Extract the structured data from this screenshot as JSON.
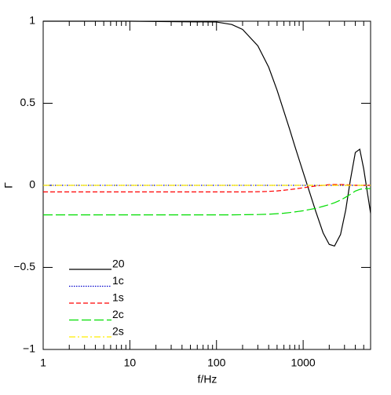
{
  "chart_data": {
    "type": "line",
    "x_label": "f/Hz",
    "y_label": "Γ",
    "x": [
      1,
      10,
      100,
      150,
      200,
      300,
      400,
      500,
      600,
      700,
      800,
      1000,
      1200,
      1400,
      1700,
      2000,
      2300,
      2700,
      3100,
      3500,
      4000,
      4500,
      5000,
      6000
    ],
    "series": [
      {
        "name": "20",
        "color": "#000000",
        "dash": "solid",
        "values": [
          1,
          1,
          0.995,
          0.98,
          0.95,
          0.85,
          0.72,
          0.58,
          0.45,
          0.34,
          0.24,
          0.08,
          -0.05,
          -0.16,
          -0.29,
          -0.36,
          -0.37,
          -0.3,
          -0.15,
          0.03,
          0.2,
          0.22,
          0.1,
          -0.17
        ]
      },
      {
        "name": "1c",
        "color": "#0000cc",
        "dash": "dotted",
        "values": [
          0,
          0,
          0,
          0,
          0,
          0,
          0,
          0,
          0,
          0,
          0,
          0,
          0,
          0,
          0,
          0,
          0,
          0,
          0,
          0,
          0,
          0,
          0,
          0
        ]
      },
      {
        "name": "1s",
        "color": "#ff0000",
        "dash": "dashed",
        "values": [
          -0.04,
          -0.04,
          -0.04,
          -0.04,
          -0.04,
          -0.039,
          -0.037,
          -0.034,
          -0.03,
          -0.026,
          -0.022,
          -0.015,
          -0.009,
          -0.004,
          0,
          0.004,
          0.005,
          0.005,
          0.004,
          0.002,
          0,
          0,
          0,
          0
        ]
      },
      {
        "name": "2c",
        "color": "#00dd00",
        "dash": "longdash",
        "values": [
          -0.18,
          -0.18,
          -0.18,
          -0.18,
          -0.179,
          -0.178,
          -0.176,
          -0.173,
          -0.17,
          -0.166,
          -0.162,
          -0.155,
          -0.147,
          -0.14,
          -0.128,
          -0.117,
          -0.106,
          -0.09,
          -0.072,
          -0.055,
          -0.035,
          -0.025,
          -0.02,
          -0.02
        ]
      },
      {
        "name": "2s",
        "color": "#ffee00",
        "dash": "dashdot",
        "values": [
          0,
          0,
          0,
          0,
          0,
          0,
          0,
          0,
          0,
          0,
          0,
          0,
          0,
          0,
          0,
          0,
          0,
          0,
          0,
          0,
          0,
          0,
          0,
          0
        ]
      }
    ],
    "log_x": true,
    "xlim": [
      1,
      6000
    ],
    "xticks": [
      1,
      10,
      100,
      1000
    ],
    "xminorticks": [
      2,
      3,
      4,
      5,
      6,
      7,
      8,
      9,
      20,
      30,
      40,
      50,
      60,
      70,
      80,
      90,
      200,
      300,
      400,
      500,
      600,
      700,
      800,
      900,
      2000,
      3000,
      4000,
      5000
    ],
    "ylim": [
      -1,
      1
    ],
    "yticks": [
      {
        "value": -1,
        "label": "−1"
      },
      {
        "value": -0.5,
        "label": "−0.5"
      },
      0,
      0.5,
      1
    ],
    "legend": "lower left"
  }
}
